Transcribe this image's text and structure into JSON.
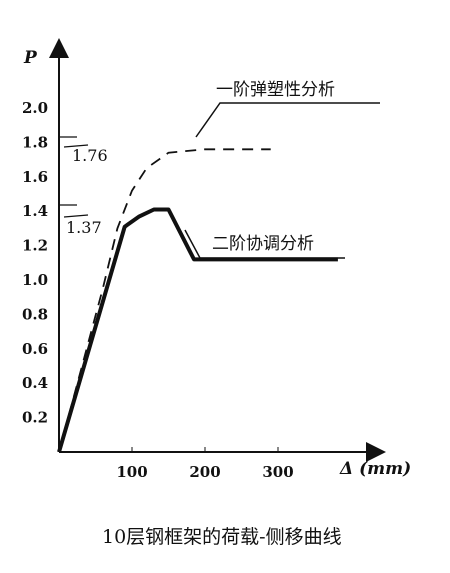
{
  "chart_data": {
    "type": "line",
    "title": "",
    "caption": "10层钢框架的荷载-侧移曲线",
    "ylabel": "P",
    "xlabel": "Δ (mm)",
    "xlim": [
      0,
      400
    ],
    "ylim": [
      0,
      2.2
    ],
    "xticks": [
      "100",
      "200",
      "300"
    ],
    "xtick_values": [
      100,
      200,
      300
    ],
    "yticks": [
      "0.2",
      "0.4",
      "0.6",
      "0.8",
      "1.0",
      "1.2",
      "1.4",
      "1.6",
      "1.8",
      "2.0"
    ],
    "ytick_values": [
      0.2,
      0.4,
      0.6,
      0.8,
      1.0,
      1.2,
      1.4,
      1.6,
      1.8,
      2.0
    ],
    "grid": false,
    "series": [
      {
        "name": "一阶弹塑性分析",
        "style": "dashed",
        "color": "#111111",
        "points": [
          [
            0,
            0
          ],
          [
            60,
            0.95
          ],
          [
            80,
            1.3
          ],
          [
            100,
            1.52
          ],
          [
            120,
            1.65
          ],
          [
            150,
            1.74
          ],
          [
            200,
            1.76
          ],
          [
            290,
            1.76
          ]
        ]
      },
      {
        "name": "二阶协调分析",
        "style": "solid-thick",
        "color": "#111111",
        "points": [
          [
            0,
            0
          ],
          [
            90,
            1.31
          ],
          [
            110,
            1.37
          ],
          [
            130,
            1.41
          ],
          [
            150,
            1.41
          ],
          [
            185,
            1.12
          ],
          [
            382,
            1.12
          ]
        ]
      }
    ],
    "annotations": [
      {
        "text": "1.76",
        "value": 1.76
      },
      {
        "text": "1.37",
        "value": 1.37
      }
    ]
  }
}
